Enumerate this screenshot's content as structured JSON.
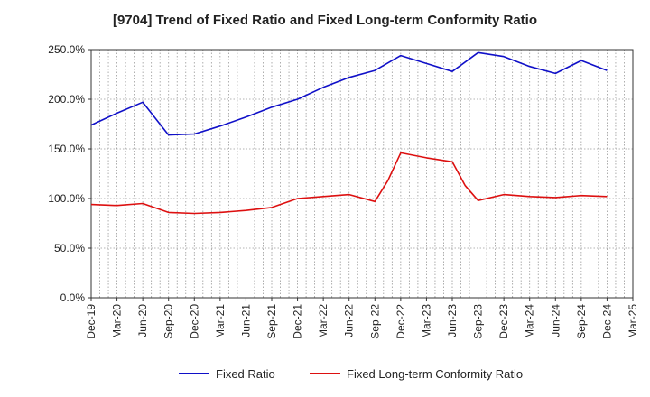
{
  "chart_data": {
    "type": "line",
    "title": "[9704]  Trend of Fixed Ratio and Fixed Long-term Conformity Ratio",
    "xlabel": "",
    "ylabel": "",
    "ylim": [
      0,
      250
    ],
    "y_ticks": [
      "0.0%",
      "50.0%",
      "100.0%",
      "150.0%",
      "200.0%",
      "250.0%"
    ],
    "x_ticks": [
      "Dec-19",
      "Mar-20",
      "Jun-20",
      "Sep-20",
      "Dec-20",
      "Mar-21",
      "Jun-21",
      "Sep-21",
      "Dec-21",
      "Mar-22",
      "Jun-22",
      "Sep-22",
      "Dec-22",
      "Mar-23",
      "Jun-23",
      "Sep-23",
      "Dec-23",
      "Mar-24",
      "Jun-24",
      "Sep-24",
      "Dec-24",
      "Mar-25"
    ],
    "grid": true,
    "legend_position": "bottom",
    "series": [
      {
        "name": "Fixed Ratio",
        "color": "#1010c8",
        "points": [
          [
            0,
            174
          ],
          [
            1,
            186
          ],
          [
            2,
            197
          ],
          [
            3,
            164
          ],
          [
            4,
            165
          ],
          [
            5,
            173
          ],
          [
            6,
            182
          ],
          [
            7,
            192
          ],
          [
            8,
            200
          ],
          [
            9,
            212
          ],
          [
            10,
            222
          ],
          [
            11,
            229
          ],
          [
            12,
            244
          ],
          [
            13,
            236
          ],
          [
            14,
            228
          ],
          [
            15,
            247
          ],
          [
            16,
            243
          ],
          [
            17,
            233
          ],
          [
            18,
            226
          ],
          [
            19,
            239
          ],
          [
            20,
            229
          ]
        ]
      },
      {
        "name": "Fixed Long-term Conformity Ratio",
        "color": "#dd1010",
        "points": [
          [
            0,
            94
          ],
          [
            1,
            93
          ],
          [
            2,
            95
          ],
          [
            3,
            86
          ],
          [
            4,
            85
          ],
          [
            5,
            86
          ],
          [
            6,
            88
          ],
          [
            7,
            91
          ],
          [
            8,
            100
          ],
          [
            9,
            102
          ],
          [
            10,
            104
          ],
          [
            11,
            97
          ],
          [
            11.5,
            118
          ],
          [
            12,
            146
          ],
          [
            13,
            141
          ],
          [
            14,
            137
          ],
          [
            14.5,
            113
          ],
          [
            15,
            98
          ],
          [
            16,
            104
          ],
          [
            17,
            102
          ],
          [
            18,
            101
          ],
          [
            19,
            103
          ],
          [
            20,
            102
          ]
        ]
      }
    ]
  }
}
